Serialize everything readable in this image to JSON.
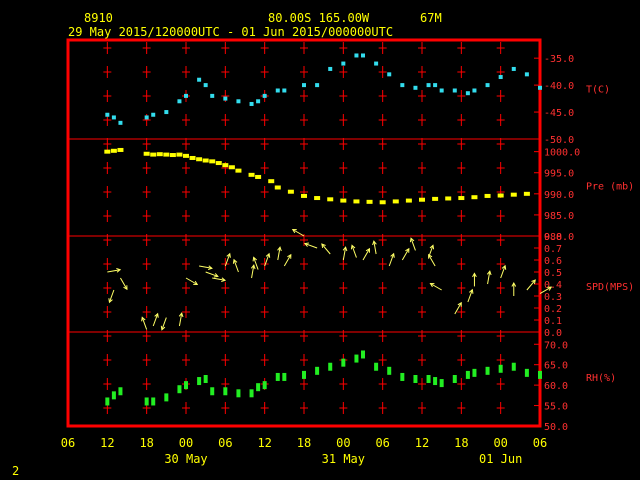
{
  "header": {
    "station": "8910",
    "location": "80.00S  165.00W",
    "elevation": "67M",
    "range": "29 May 2015/120000UTC - 01 Jun 2015/000000UTC"
  },
  "page_number": "2",
  "colors": {
    "frame": "#ff0000",
    "text": "#ffff00",
    "temp": "#33ddee",
    "pres": "#ffff00",
    "wind": "#ffff66",
    "rh": "#22ee22"
  },
  "chart_data": [
    {
      "type": "scatter",
      "ylabel": "T(C)",
      "yticks": [
        "-35.0",
        "-40.0",
        "-45.0",
        "-50.0"
      ],
      "ylim": [
        -50,
        -32
      ],
      "x_hours": [
        12,
        13,
        14,
        18,
        19,
        21,
        23,
        24,
        26,
        27,
        28,
        30,
        32,
        34,
        35,
        36,
        38,
        39,
        42,
        44,
        46,
        48,
        50,
        51,
        53,
        55,
        57,
        59,
        61,
        62,
        63,
        65,
        67,
        68,
        70,
        72,
        74,
        76,
        78
      ],
      "values": [
        -45.5,
        -46,
        -47,
        -46,
        -45.5,
        -45,
        -43,
        -42,
        -39,
        -40,
        -42,
        -42.5,
        -43,
        -43.5,
        -43,
        -42,
        -41,
        -41,
        -40,
        -40,
        -37,
        -36,
        -34.5,
        -34.5,
        -36,
        -38,
        -40,
        -40.5,
        -40,
        -40,
        -41,
        -41,
        -41.5,
        -41,
        -40,
        -38.5,
        -37,
        -38,
        -40.5
      ]
    },
    {
      "type": "scatter",
      "ylabel": "Pre (mb)",
      "yticks": [
        "1000.0",
        "995.0",
        "990.0",
        "985.0",
        "980.0"
      ],
      "ylim": [
        980,
        1003
      ],
      "x_hours": [
        12,
        13,
        14,
        18,
        19,
        20,
        21,
        22,
        23,
        24,
        25,
        26,
        27,
        28,
        29,
        30,
        31,
        32,
        34,
        35,
        37,
        38,
        40,
        42,
        44,
        46,
        48,
        50,
        52,
        54,
        56,
        58,
        60,
        62,
        64,
        66,
        68,
        70,
        72,
        74,
        76
      ],
      "values": [
        1000,
        1000.2,
        1000.4,
        999.5,
        999.3,
        999.4,
        999.3,
        999.2,
        999.3,
        999,
        998.5,
        998.2,
        997.9,
        997.7,
        997.3,
        996.8,
        996.3,
        995.5,
        994.5,
        994,
        993,
        991.5,
        990.5,
        989.5,
        989,
        988.7,
        988.4,
        988.2,
        988.1,
        988,
        988.2,
        988.4,
        988.6,
        988.8,
        988.9,
        989.0,
        989.2,
        989.5,
        989.6,
        989.8,
        990
      ]
    },
    {
      "type": "scatter",
      "ylabel": "SPD(MPS)",
      "yticks": [
        "0.8",
        "0.7",
        "0.6",
        "0.5",
        "0.4",
        "0.3",
        "0.2",
        "0.1",
        "0.0"
      ],
      "ylim": [
        0,
        0.8
      ],
      "x_hours": [
        12,
        13,
        14,
        18,
        19,
        21,
        23,
        24,
        26,
        27,
        28,
        30,
        32,
        34,
        35,
        36,
        38,
        39,
        42,
        44,
        46,
        48,
        50,
        51,
        53,
        55,
        57,
        59,
        61,
        62,
        63,
        65,
        67,
        68,
        70,
        72,
        74,
        76,
        78
      ],
      "values": [
        0.5,
        0.35,
        0.45,
        0.02,
        0.05,
        0.12,
        0.05,
        0.45,
        0.55,
        0.5,
        0.45,
        0.55,
        0.5,
        0.45,
        0.52,
        0.55,
        0.6,
        0.55,
        0.8,
        0.7,
        0.65,
        0.6,
        0.62,
        0.6,
        0.65,
        0.55,
        0.6,
        0.68,
        0.62,
        0.55,
        0.35,
        0.15,
        0.25,
        0.38,
        0.4,
        0.45,
        0.3,
        0.35,
        0.32
      ],
      "dir_deg": [
        80,
        200,
        150,
        340,
        20,
        200,
        10,
        120,
        100,
        110,
        100,
        20,
        340,
        10,
        340,
        20,
        10,
        30,
        300,
        290,
        320,
        10,
        340,
        30,
        350,
        20,
        30,
        340,
        20,
        330,
        300,
        30,
        20,
        0,
        10,
        20,
        0,
        40,
        60
      ]
    },
    {
      "type": "scatter",
      "ylabel": "RH(%)",
      "yticks": [
        "70.0",
        "65.0",
        "60.0",
        "55.0",
        "50.0"
      ],
      "ylim": [
        50,
        73
      ],
      "x_hours": [
        12,
        13,
        14,
        18,
        19,
        21,
        23,
        24,
        26,
        27,
        28,
        30,
        32,
        34,
        35,
        36,
        38,
        39,
        42,
        44,
        46,
        48,
        50,
        51,
        53,
        55,
        57,
        59,
        61,
        62,
        63,
        65,
        67,
        68,
        70,
        72,
        74,
        76,
        78
      ],
      "values": [
        56,
        57.5,
        58.5,
        56,
        56,
        57,
        59,
        60,
        61,
        61.5,
        58.5,
        58.5,
        58,
        58,
        59.5,
        60,
        62,
        62,
        62.5,
        63.5,
        64.5,
        65.5,
        66.5,
        67.5,
        64.5,
        63.5,
        62,
        61.5,
        61.5,
        61,
        60.5,
        61.5,
        62.5,
        63,
        63.5,
        64,
        64.5,
        63,
        62.5
      ]
    }
  ],
  "x_axis": {
    "hour_labels": [
      "06",
      "12",
      "18",
      "00",
      "06",
      "12",
      "18",
      "00",
      "06",
      "12",
      "18",
      "00",
      "06"
    ],
    "day_labels": [
      "30 May",
      "31 May",
      "01 Jun"
    ]
  }
}
